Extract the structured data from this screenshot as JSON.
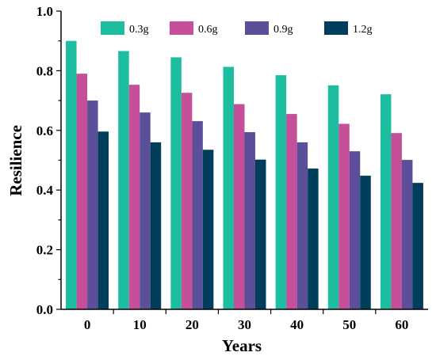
{
  "chart_data": {
    "type": "bar",
    "title": "",
    "xlabel": "Years",
    "ylabel": "Resilience",
    "categories": [
      "0",
      "10",
      "20",
      "30",
      "40",
      "50",
      "60"
    ],
    "ylim": [
      0,
      1.0
    ],
    "yticks": [
      "0.0",
      "0.2",
      "0.4",
      "0.6",
      "0.8",
      "1.0"
    ],
    "grid": false,
    "legend_position": "top",
    "series": [
      {
        "name": "0.3g",
        "color": "#1dbda0",
        "values": [
          0.9,
          0.866,
          0.845,
          0.813,
          0.785,
          0.751,
          0.721
        ]
      },
      {
        "name": "0.6g",
        "color": "#c64f99",
        "values": [
          0.79,
          0.753,
          0.726,
          0.688,
          0.655,
          0.622,
          0.591
        ]
      },
      {
        "name": "0.9g",
        "color": "#5c4f99",
        "values": [
          0.7,
          0.66,
          0.631,
          0.594,
          0.56,
          0.53,
          0.501
        ]
      },
      {
        "name": "1.2g",
        "color": "#003f5c",
        "values": [
          0.596,
          0.56,
          0.535,
          0.502,
          0.472,
          0.448,
          0.424
        ]
      }
    ]
  }
}
